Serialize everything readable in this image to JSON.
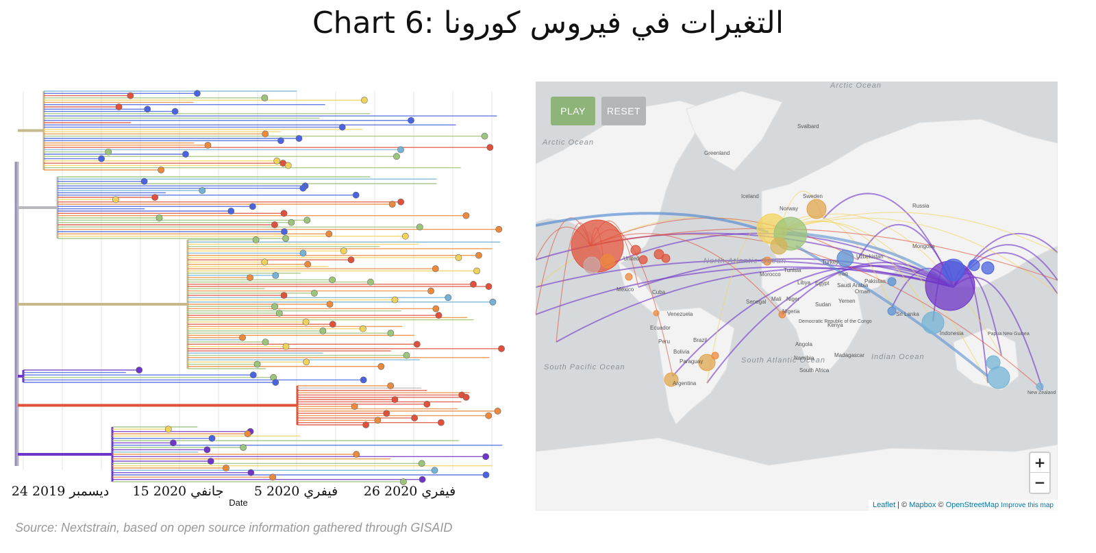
{
  "title": {
    "prefix": "Chart 6:",
    "arabic": "التغيرات في فيروس كورونا"
  },
  "tree": {
    "x_ticks": [
      "24 ديسمبر 2019",
      "15 جانفي 2020",
      "5 فيفري 2020",
      "26 فيفري 2020"
    ],
    "x_label": "Date"
  },
  "map": {
    "play_label": "PLAY",
    "reset_label": "RESET",
    "zoom_in": "+",
    "zoom_out": "−",
    "attribution": {
      "leaflet": "Leaflet",
      "sep1": " | © ",
      "mapbox": "Mapbox",
      "sep2": " © ",
      "osm": "OpenStreetMap",
      "improve": "Improve this map"
    },
    "labels": {
      "ocean": [
        "Arctic Ocean",
        "Arctic Ocean",
        "North Atlantic Ocean",
        "South Atlantic Ocean",
        "South Pacific Ocean",
        "Indian Ocean"
      ],
      "places": [
        "Greenland",
        "Svalbard",
        "Iceland",
        "Sweden",
        "Norway",
        "Russia",
        "Mongolia",
        "Uzbekistan",
        "Turkey",
        "Iraq",
        "Pakistan",
        "Saudi Arabia",
        "Oman",
        "Yemen",
        "Egypt",
        "Libya",
        "Tunisia",
        "Morocco",
        "Mali",
        "Niger",
        "Senegal",
        "Nigeria",
        "Sudan",
        "Kenya",
        "Democratic Republic of the Congo",
        "Angola",
        "Namibia",
        "South Africa",
        "Madagascar",
        "Sri Lanka",
        "Indonesia",
        "Papua New Guinea",
        "New Zealand",
        "United",
        "Mexico",
        "Cuba",
        "Venezuela",
        "Ecuador",
        "Peru",
        "Brazil",
        "Bolivia",
        "Paraguay",
        "Argentina"
      ]
    }
  },
  "source": "Source: Nextstrain, based on open source information gathered through GISAID",
  "colors": {
    "trunk": "#9b8fc2",
    "gray": "#b9b9bd",
    "tan": "#c7b98e",
    "red": "#e0503a",
    "purple": "#6f35c8",
    "blue": "#4a63e0",
    "lightblue": "#74b3d6",
    "green": "#9cc47a",
    "yellow": "#f2d35a",
    "orange": "#ec8a3c"
  }
}
